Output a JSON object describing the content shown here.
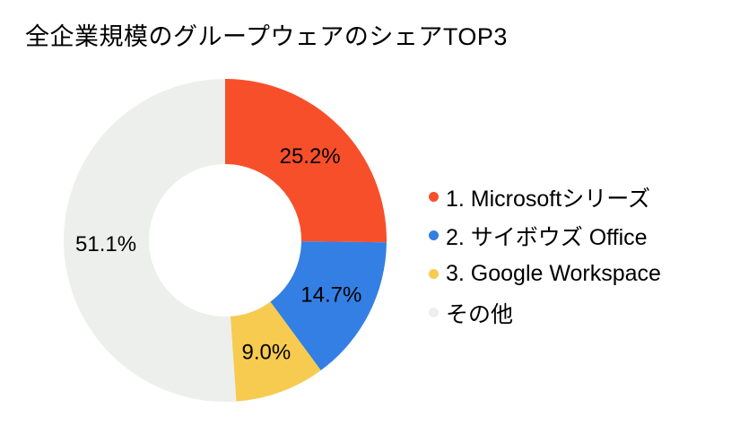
{
  "page": {
    "background_color": "#ffffff",
    "text_color": "#000000"
  },
  "chart_data": {
    "type": "pie",
    "subtype": "donut",
    "title": "全企業規模のグループウェアのシェアTOP3",
    "categories": [
      "1. Microsoftシリーズ",
      "2. サイボウズ Office",
      "3. Google Workspace",
      "その他"
    ],
    "values": [
      25.2,
      14.7,
      9.0,
      51.1
    ],
    "data_labels": [
      "25.2%",
      "14.7%",
      "9.0%",
      "51.1%"
    ],
    "colors": [
      "#F84F2B",
      "#347FE3",
      "#F7CB4F",
      "#EDEFED"
    ],
    "label_color": "#000000",
    "start_angle_deg": 0,
    "direction": "clockwise",
    "legend_position": "right",
    "hole": true
  },
  "legend": {
    "items": [
      {
        "label": "1. Microsoftシリーズ",
        "color": "#F84F2B",
        "marker": "circle-icon"
      },
      {
        "label": "2. サイボウズ Office",
        "color": "#347FE3",
        "marker": "circle-icon"
      },
      {
        "label": "3. Google Workspace",
        "color": "#F7CB4F",
        "marker": "circle-icon"
      },
      {
        "label": "その他",
        "color": "#EDEFED",
        "marker": "circle-icon"
      }
    ]
  }
}
